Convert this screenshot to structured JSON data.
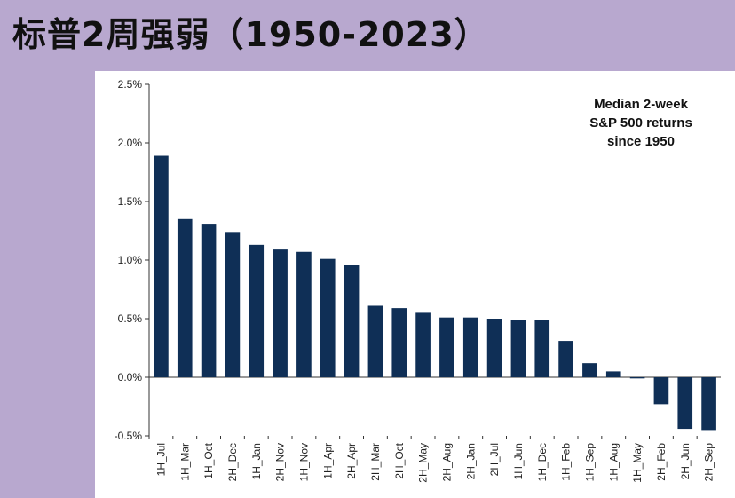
{
  "page": {
    "title": "标普2周强弱（1950-2023）"
  },
  "colors": {
    "background": "#b8a8cf",
    "bar": "#0f2f56",
    "axis": "#333333"
  },
  "chart_data": {
    "type": "bar",
    "title": "",
    "xlabel": "",
    "ylabel": "",
    "annotation": [
      "Median 2-week",
      "S&P 500 returns",
      "since 1950"
    ],
    "categories": [
      "1H_Jul",
      "1H_Mar",
      "1H_Oct",
      "2H_Dec",
      "1H_Jan",
      "2H_Nov",
      "1H_Nov",
      "1H_Apr",
      "2H_Apr",
      "2H_Mar",
      "2H_Oct",
      "2H_May",
      "2H_Aug",
      "2H_Jan",
      "2H_Jul",
      "1H_Jun",
      "1H_Dec",
      "1H_Feb",
      "1H_Sep",
      "1H_Aug",
      "1H_May",
      "2H_Feb",
      "2H_Jun",
      "2H_Sep"
    ],
    "values": [
      1.89,
      1.35,
      1.31,
      1.24,
      1.13,
      1.09,
      1.07,
      1.01,
      0.96,
      0.61,
      0.59,
      0.55,
      0.51,
      0.51,
      0.5,
      0.49,
      0.49,
      0.31,
      0.12,
      0.05,
      -0.01,
      -0.23,
      -0.44,
      -0.45
    ],
    "ylim": [
      -0.5,
      2.5
    ],
    "yticks": [
      2.5,
      2.0,
      1.5,
      1.0,
      0.5,
      0.0,
      -0.5
    ],
    "ytick_labels": [
      "2.5%",
      "2.0%",
      "1.5%",
      "1.0%",
      "0.5%",
      "0.0%",
      "-0.5%"
    ],
    "grid": false,
    "legend": "none"
  }
}
